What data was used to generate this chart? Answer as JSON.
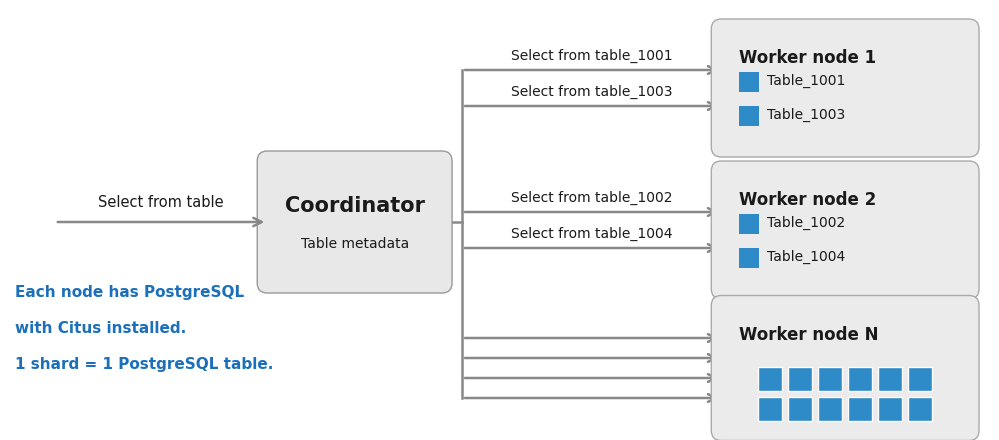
{
  "bg_color": "#ffffff",
  "coord_box_color": "#e8e8e8",
  "coord_box_edge_color": "#999999",
  "worker_box_color": "#ebebeb",
  "worker_box_edge_color": "#aaaaaa",
  "arrow_color": "#888888",
  "blue_color": "#1c6fba",
  "shard_blue": "#2e8bc7",
  "shard_edge": "#1a6ba0",
  "text_color": "#1a1a1a",
  "input_label": "Select from table",
  "coordinator_label1": "Coordinator",
  "coordinator_label2": "Table metadata",
  "worker1_title": "Worker node 1",
  "worker1_items": [
    "Table_1001",
    "Table_1003"
  ],
  "worker1_arrows": [
    "Select from table_1001",
    "Select from table_1003"
  ],
  "worker2_title": "Worker node 2",
  "worker2_items": [
    "Table_1002",
    "Table_1004"
  ],
  "worker2_arrows": [
    "Select from table_1002",
    "Select from table_1004"
  ],
  "workerN_title": "Worker node N",
  "bottom_text_line1": "Each node has PostgreSQL",
  "bottom_text_line2": "with Citus installed.",
  "bottom_text_line3": "1 shard = 1 PostgreSQL table.",
  "figsize": [
    9.99,
    4.4
  ],
  "dpi": 100
}
